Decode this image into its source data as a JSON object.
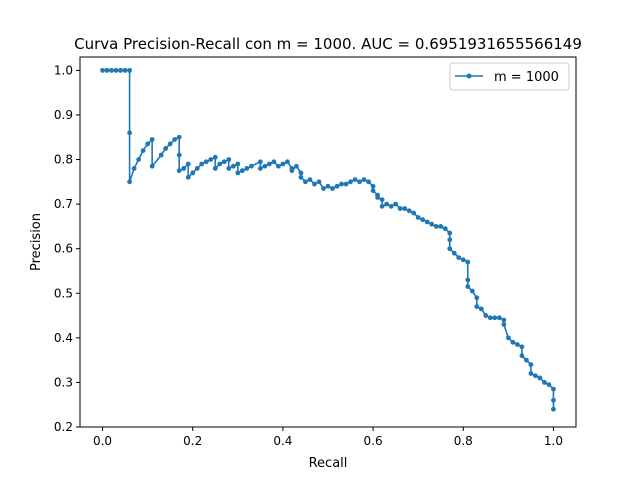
{
  "chart_data": {
    "type": "line",
    "title": "Curva Precision-Recall con m = 1000. AUC = 0.6951931655566149",
    "xlabel": "Recall",
    "ylabel": "Precision",
    "xlim": [
      -0.05,
      1.05
    ],
    "ylim": [
      0.2,
      1.03
    ],
    "xticks": [
      0.0,
      0.2,
      0.4,
      0.6,
      0.8,
      1.0
    ],
    "xtick_labels": [
      "0.0",
      "0.2",
      "0.4",
      "0.6",
      "0.8",
      "1.0"
    ],
    "yticks": [
      0.2,
      0.3,
      0.4,
      0.5,
      0.6,
      0.7,
      0.8,
      0.9,
      1.0
    ],
    "ytick_labels": [
      "0.2",
      "0.3",
      "0.4",
      "0.5",
      "0.6",
      "0.7",
      "0.8",
      "0.9",
      "1.0"
    ],
    "grid": false,
    "legend_position": "top-right",
    "series": [
      {
        "name": "m = 1000",
        "color": "#1f77b4",
        "marker": "circle",
        "x": [
          0.0,
          0.01,
          0.02,
          0.03,
          0.04,
          0.05,
          0.06,
          0.06,
          0.06,
          0.07,
          0.08,
          0.09,
          0.1,
          0.11,
          0.11,
          0.13,
          0.14,
          0.15,
          0.16,
          0.17,
          0.17,
          0.17,
          0.18,
          0.19,
          0.19,
          0.2,
          0.21,
          0.22,
          0.23,
          0.24,
          0.25,
          0.25,
          0.26,
          0.27,
          0.28,
          0.28,
          0.29,
          0.3,
          0.3,
          0.31,
          0.32,
          0.33,
          0.35,
          0.35,
          0.36,
          0.37,
          0.38,
          0.39,
          0.4,
          0.41,
          0.42,
          0.42,
          0.43,
          0.44,
          0.44,
          0.45,
          0.46,
          0.47,
          0.48,
          0.49,
          0.5,
          0.51,
          0.52,
          0.53,
          0.54,
          0.55,
          0.56,
          0.57,
          0.58,
          0.59,
          0.6,
          0.6,
          0.61,
          0.61,
          0.62,
          0.62,
          0.63,
          0.64,
          0.65,
          0.66,
          0.67,
          0.68,
          0.69,
          0.7,
          0.71,
          0.72,
          0.73,
          0.74,
          0.75,
          0.76,
          0.77,
          0.77,
          0.77,
          0.78,
          0.79,
          0.8,
          0.81,
          0.81,
          0.81,
          0.82,
          0.83,
          0.83,
          0.84,
          0.85,
          0.86,
          0.87,
          0.88,
          0.89,
          0.89,
          0.9,
          0.91,
          0.92,
          0.93,
          0.93,
          0.94,
          0.95,
          0.95,
          0.96,
          0.97,
          0.98,
          0.99,
          1.0,
          1.0,
          1.0
        ],
        "y": [
          1.0,
          1.0,
          1.0,
          1.0,
          1.0,
          1.0,
          1.0,
          0.86,
          0.75,
          0.78,
          0.8,
          0.82,
          0.835,
          0.845,
          0.785,
          0.81,
          0.825,
          0.835,
          0.845,
          0.85,
          0.81,
          0.775,
          0.78,
          0.79,
          0.76,
          0.77,
          0.78,
          0.79,
          0.795,
          0.8,
          0.805,
          0.78,
          0.79,
          0.795,
          0.8,
          0.78,
          0.785,
          0.79,
          0.77,
          0.775,
          0.78,
          0.785,
          0.795,
          0.78,
          0.785,
          0.79,
          0.795,
          0.785,
          0.79,
          0.795,
          0.78,
          0.775,
          0.785,
          0.77,
          0.76,
          0.75,
          0.755,
          0.745,
          0.75,
          0.735,
          0.74,
          0.735,
          0.74,
          0.745,
          0.745,
          0.75,
          0.755,
          0.75,
          0.755,
          0.75,
          0.74,
          0.73,
          0.72,
          0.715,
          0.71,
          0.695,
          0.7,
          0.695,
          0.7,
          0.69,
          0.69,
          0.685,
          0.68,
          0.67,
          0.665,
          0.66,
          0.655,
          0.65,
          0.65,
          0.645,
          0.635,
          0.62,
          0.6,
          0.59,
          0.58,
          0.575,
          0.57,
          0.53,
          0.515,
          0.505,
          0.49,
          0.47,
          0.465,
          0.45,
          0.445,
          0.445,
          0.445,
          0.44,
          0.43,
          0.4,
          0.39,
          0.385,
          0.38,
          0.36,
          0.35,
          0.34,
          0.32,
          0.315,
          0.31,
          0.3,
          0.295,
          0.285,
          0.26,
          0.24
        ]
      }
    ]
  }
}
